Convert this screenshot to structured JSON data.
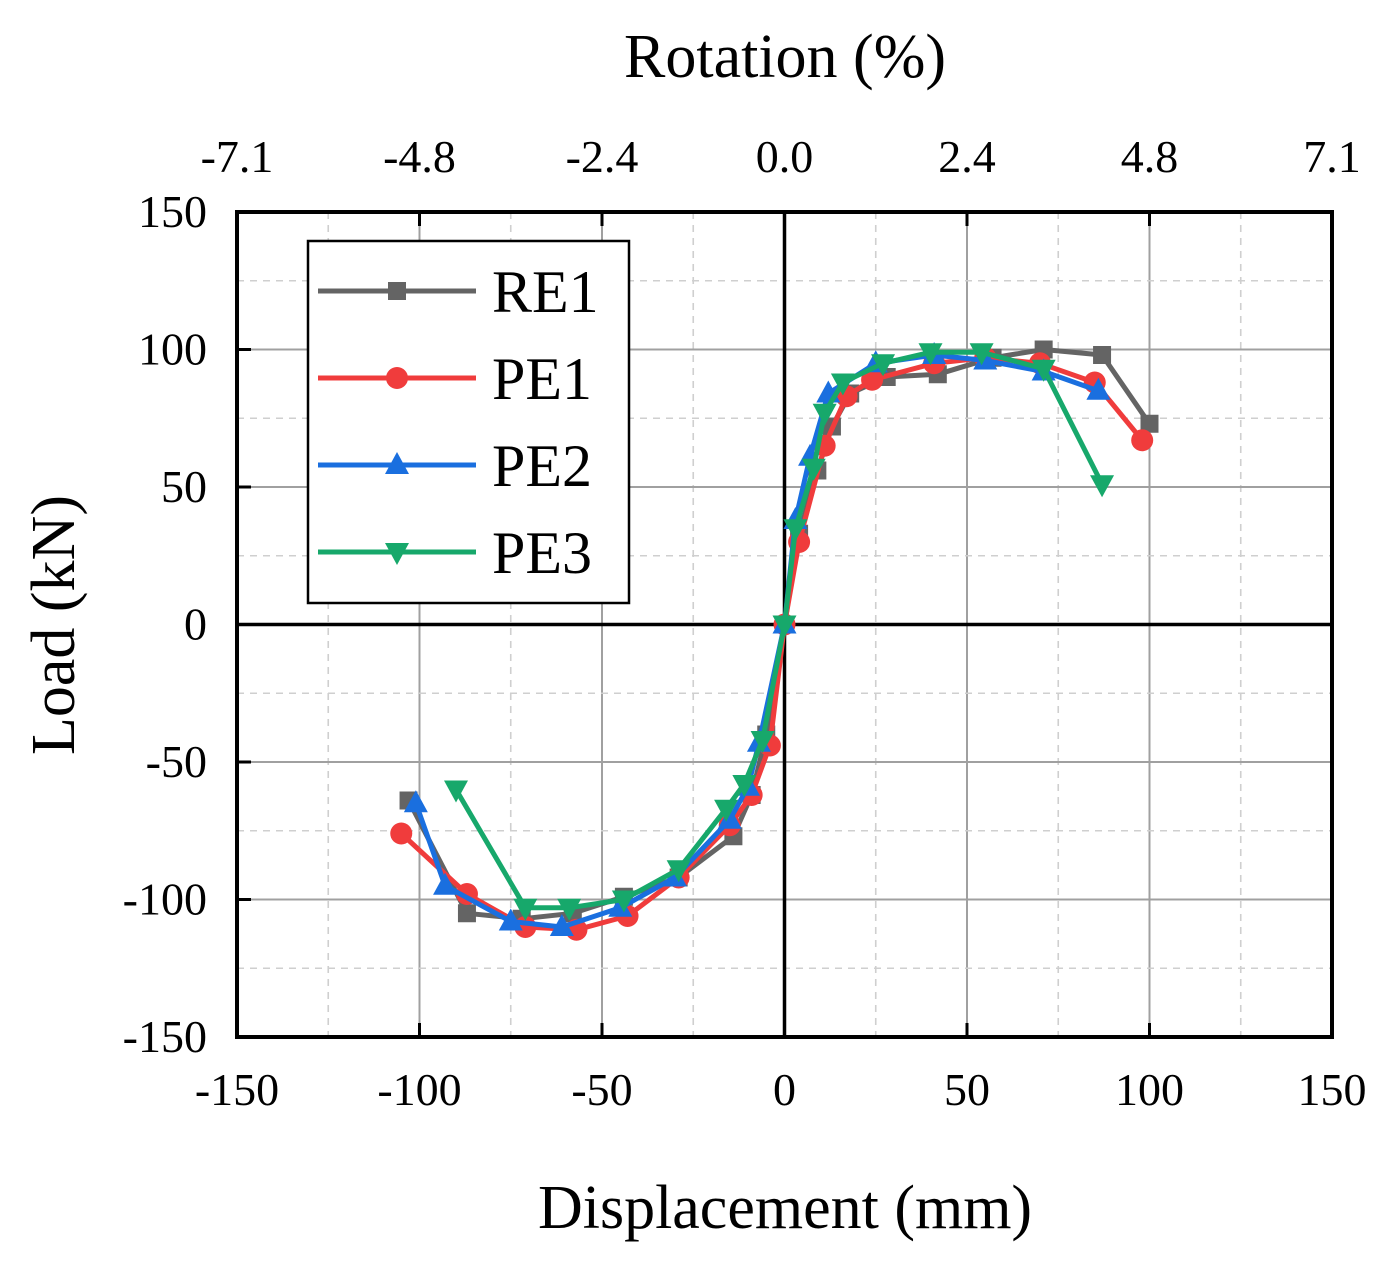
{
  "chart_data": {
    "type": "line",
    "title": "",
    "xlabel": "Displacement (mm)",
    "ylabel": "Load (kN)",
    "x2label": "Rotation (%)",
    "xlim": [
      -150,
      150
    ],
    "ylim": [
      -150,
      150
    ],
    "xticks": [
      -150,
      -100,
      -50,
      0,
      50,
      100,
      150
    ],
    "yticks": [
      -150,
      -100,
      -50,
      0,
      50,
      100,
      150
    ],
    "x2ticks": [
      "-7.1",
      "-4.8",
      "-2.4",
      "0.0",
      "2.4",
      "4.8",
      "7.1"
    ],
    "grid": true,
    "legend_position": "top-left",
    "series": [
      {
        "name": "RE1",
        "color": "#646464",
        "marker": "square",
        "points": [
          [
            -103,
            -64
          ],
          [
            -87,
            -105
          ],
          [
            -72,
            -107
          ],
          [
            -58,
            -105
          ],
          [
            -44,
            -99
          ],
          [
            -29,
            -92
          ],
          [
            -14,
            -77
          ],
          [
            -9,
            -62
          ],
          [
            -5,
            -40
          ],
          [
            0,
            0
          ],
          [
            4,
            33
          ],
          [
            9,
            56
          ],
          [
            13,
            72
          ],
          [
            18,
            84
          ],
          [
            28,
            90
          ],
          [
            42,
            91
          ],
          [
            57,
            97
          ],
          [
            71,
            100
          ],
          [
            87,
            98
          ],
          [
            100,
            73
          ]
        ]
      },
      {
        "name": "PE1",
        "color": "#f03c3c",
        "marker": "circle",
        "points": [
          [
            -105,
            -76
          ],
          [
            -87,
            -98
          ],
          [
            -71,
            -110
          ],
          [
            -57,
            -111
          ],
          [
            -43,
            -106
          ],
          [
            -29,
            -92
          ],
          [
            -15,
            -73
          ],
          [
            -9,
            -62
          ],
          [
            -4,
            -44
          ],
          [
            0,
            0
          ],
          [
            4,
            30
          ],
          [
            11,
            65
          ],
          [
            17,
            83
          ],
          [
            24,
            89
          ],
          [
            41,
            95
          ],
          [
            55,
            97
          ],
          [
            70,
            95
          ],
          [
            85,
            88
          ],
          [
            98,
            67
          ]
        ]
      },
      {
        "name": "PE2",
        "color": "#1a6fdf",
        "marker": "triangle-up",
        "points": [
          [
            -101,
            -65
          ],
          [
            -93,
            -95
          ],
          [
            -75,
            -108
          ],
          [
            -61,
            -110
          ],
          [
            -45,
            -103
          ],
          [
            -30,
            -92
          ],
          [
            -15,
            -71
          ],
          [
            -10,
            -59
          ],
          [
            -7,
            -43
          ],
          [
            0,
            0
          ],
          [
            3,
            38
          ],
          [
            7,
            61
          ],
          [
            12,
            84
          ],
          [
            25,
            95
          ],
          [
            41,
            98
          ],
          [
            55,
            96
          ],
          [
            71,
            92
          ],
          [
            86,
            85
          ]
        ]
      },
      {
        "name": "PE3",
        "color": "#17a86b",
        "marker": "triangle-down",
        "points": [
          [
            -90,
            -60
          ],
          [
            -71,
            -103
          ],
          [
            -59,
            -103
          ],
          [
            -44,
            -100
          ],
          [
            -29,
            -89
          ],
          [
            -16,
            -67
          ],
          [
            -11,
            -58
          ],
          [
            -6,
            -42
          ],
          [
            0,
            0
          ],
          [
            3,
            35
          ],
          [
            8,
            57
          ],
          [
            11,
            77
          ],
          [
            16,
            88
          ],
          [
            27,
            95
          ],
          [
            40,
            99
          ],
          [
            54,
            99
          ],
          [
            71,
            93
          ],
          [
            87,
            51
          ]
        ]
      }
    ]
  }
}
